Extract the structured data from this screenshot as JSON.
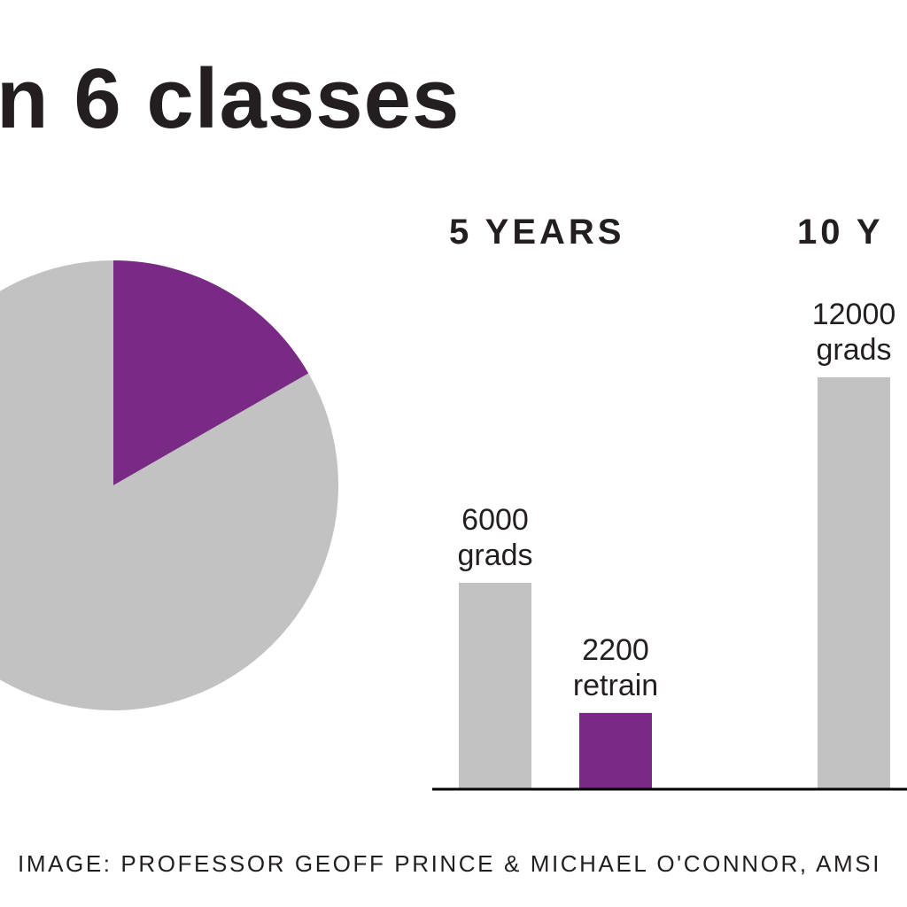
{
  "title": "n 6 classes",
  "credit": "IMAGE: PROFESSOR GEOFF PRINCE & MICHAEL O'CONNOR, AMSI",
  "colors": {
    "grads": "#c2c2c2",
    "retrain": "#782a84",
    "text": "#231f20"
  },
  "chart_data": [
    {
      "type": "pie",
      "slices": [
        {
          "fraction": 0.833,
          "color": "#c2c2c2"
        },
        {
          "fraction": 0.167,
          "color": "#782a84"
        }
      ]
    },
    {
      "type": "bar",
      "groups": [
        {
          "label": "5 YEARS",
          "bars": [
            {
              "value": 6000,
              "label_top": "6000",
              "label_bottom": "grads",
              "color": "#c2c2c2"
            },
            {
              "value": 2200,
              "label_top": "2200",
              "label_bottom": "retrain",
              "color": "#782a84"
            }
          ]
        },
        {
          "label": "10 Y",
          "bars": [
            {
              "value": 12000,
              "label_top": "12000",
              "label_bottom": "grads",
              "color": "#c2c2c2"
            }
          ]
        }
      ]
    }
  ]
}
